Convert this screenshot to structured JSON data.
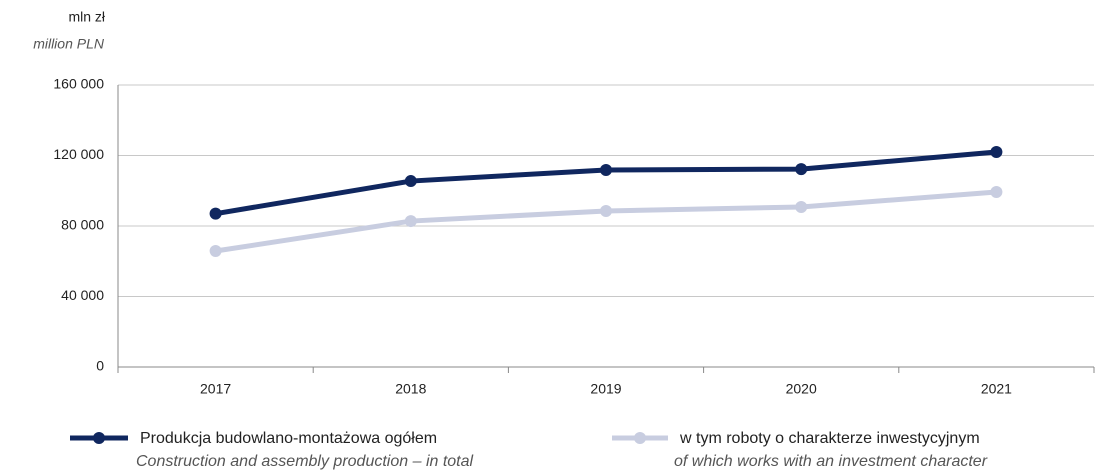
{
  "chart_data": {
    "type": "line",
    "y_axis_label": "mln zł",
    "y_axis_label_en": "million PLN",
    "categories": [
      "2017",
      "2018",
      "2019",
      "2020",
      "2021"
    ],
    "series": [
      {
        "name": "Produkcja budowlano-montażowa ogółem",
        "name_en": "Construction and assembly production – in total",
        "color": "#10275f",
        "values": [
          87000,
          105500,
          111800,
          112300,
          122000
        ]
      },
      {
        "name": "w tym roboty o charakterze inwestycyjnym",
        "name_en": "of which works with an investment character",
        "color": "#c8cde0",
        "values": [
          65800,
          82800,
          88500,
          90800,
          99300
        ]
      }
    ],
    "ylim": [
      0,
      160000
    ],
    "yticks": [
      0,
      {
        "value": 40000,
        "label": "40 000"
      },
      {
        "value": 80000,
        "label": "80 000"
      },
      {
        "value": 120000,
        "label": "120 000"
      },
      {
        "value": 160000,
        "label": "160 000"
      }
    ],
    "grid": true
  }
}
